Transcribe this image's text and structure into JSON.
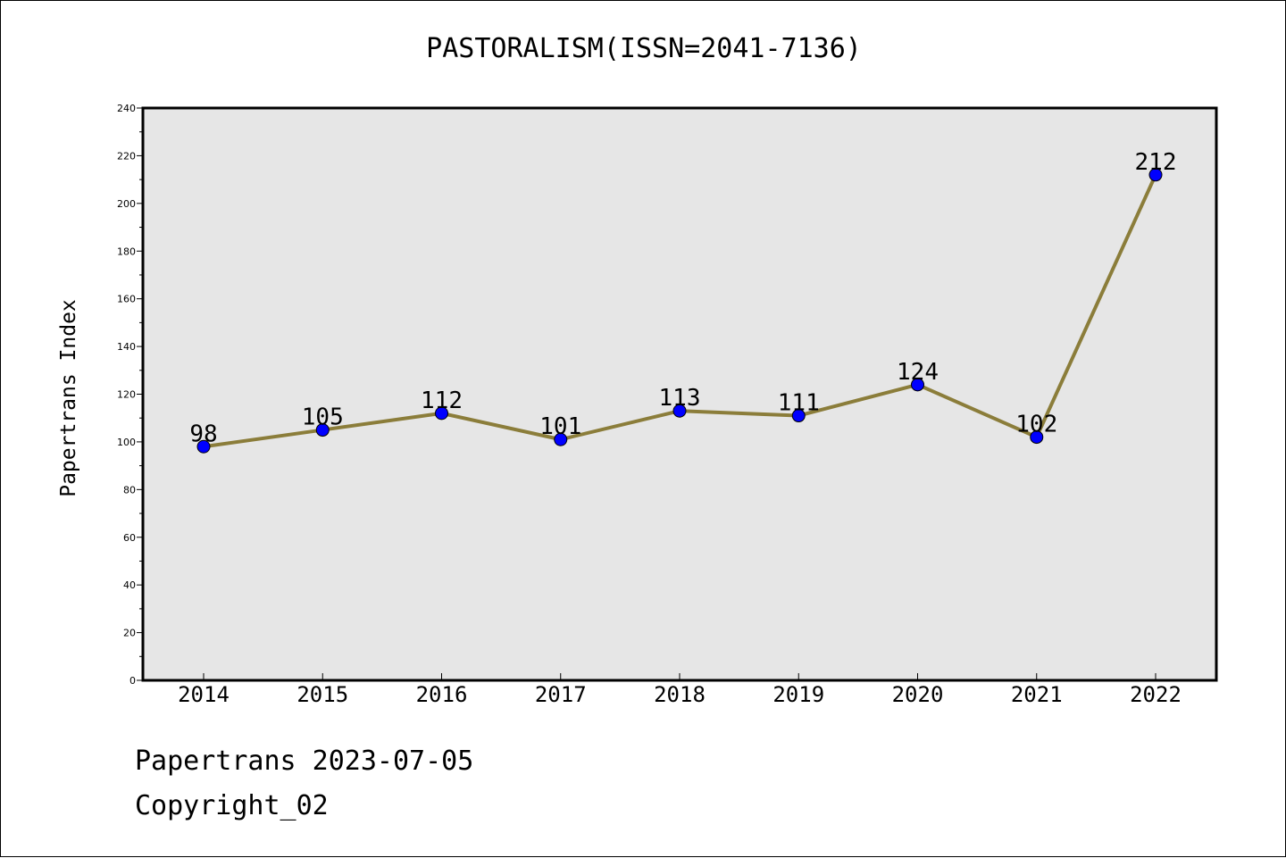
{
  "footer": {
    "date_text": "Papertrans 2023-07-05",
    "copyright_text": "Copyright_02"
  },
  "chart_data": {
    "type": "line",
    "title": "PASTORALISM(ISSN=2041-7136)",
    "xlabel": "",
    "ylabel": "Papertrans Index",
    "categories": [
      "2014",
      "2015",
      "2016",
      "2017",
      "2018",
      "2019",
      "2020",
      "2021",
      "2022"
    ],
    "values": [
      98,
      105,
      112,
      101,
      113,
      111,
      124,
      102,
      212
    ],
    "ylim": [
      0,
      240
    ],
    "yticks": [
      0,
      20,
      40,
      60,
      80,
      100,
      120,
      140,
      160,
      180,
      200,
      220,
      240
    ],
    "grid": false,
    "legend": "none",
    "colors": {
      "line": "#8b7d3a",
      "marker": "#0000ff",
      "plot_background": "#e6e6e6"
    }
  }
}
